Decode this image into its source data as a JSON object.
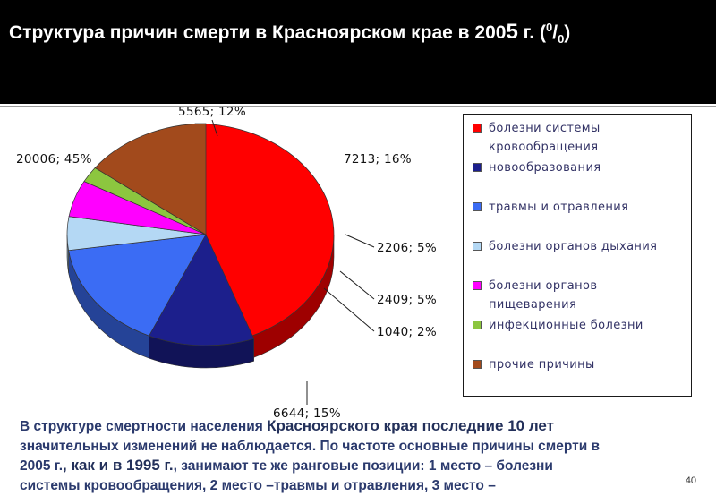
{
  "title": {
    "main": "Структура причин смерти в Красноярском крае в 200",
    "five": "5",
    "tail": " г. (",
    "sup": "0",
    "slash": "/",
    "sub": "0",
    "close": ")"
  },
  "chart_data": {
    "type": "pie",
    "title": "",
    "slices": [
      {
        "name": "болезни системы кровообращения",
        "value": 20006,
        "percent": 45,
        "label": "20006; 45%",
        "color": "#ff0000"
      },
      {
        "name": "новообразования",
        "value": 5565,
        "percent": 12,
        "label": "5565; 12%",
        "color": "#1c1f8c"
      },
      {
        "name": "травмы и отравления",
        "value": 7213,
        "percent": 16,
        "label": "7213; 16%",
        "color": "#3b6cf4"
      },
      {
        "name": "болезни органов дыхания",
        "value": 2206,
        "percent": 5,
        "label": "2206; 5%",
        "color": "#b4d8f4"
      },
      {
        "name": "болезни органов пищеварения",
        "value": 2409,
        "percent": 5,
        "label": "2409; 5%",
        "color": "#ff00ff"
      },
      {
        "name": "инфекционные болезни",
        "value": 1040,
        "percent": 2,
        "label": "1040; 2%",
        "color": "#8cc63f"
      },
      {
        "name": "прочие причины",
        "value": 6644,
        "percent": 15,
        "label": "6644; 15%",
        "color": "#a24a1c"
      }
    ],
    "legend_position": "right"
  },
  "legend": {
    "items": [
      {
        "text": "болезни системы кровообращения",
        "color": "#ff0000"
      },
      {
        "text": "новообразования",
        "color": "#1c1f8c"
      },
      {
        "text": "травмы и отравления",
        "color": "#3b6cf4"
      },
      {
        "text": "болезни органов дыхания",
        "color": "#b4d8f4"
      },
      {
        "text": "болезни органов пищеварения",
        "color": "#ff00ff"
      },
      {
        "text": "инфекционные болезни",
        "color": "#8cc63f"
      },
      {
        "text": "прочие причины",
        "color": "#a24a1c"
      }
    ]
  },
  "body": {
    "l1a": "В структуре смертности населения ",
    "l1b": "Красноярского края последние 10 лет",
    "l2": "значительных изменений не наблюдается. По частоте основные причины смерти в",
    "l3a": "2005 г.",
    "l3b": ", как и в 1995 г.",
    "l3c": ", занимают те же ранговые позиции: 1 место – болезни",
    "l4": "системы кровообращения, 2 место –травмы и отравления,  3 место –"
  },
  "page_number": "40"
}
